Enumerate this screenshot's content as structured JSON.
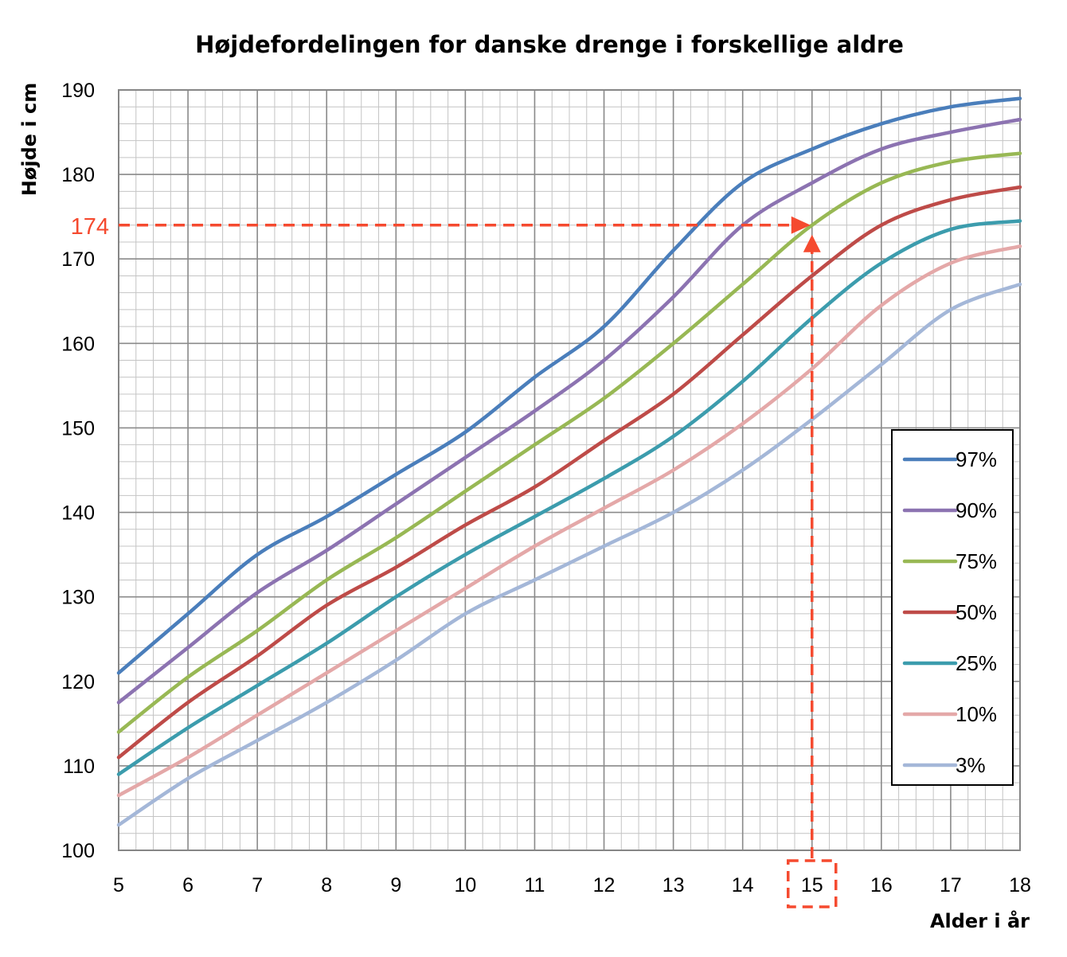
{
  "chart_data": {
    "type": "line",
    "title": "Højdefordelingen for danske drenge i forskellige aldre",
    "xlabel": "Alder i år",
    "ylabel": "Højde i cm",
    "xlim": [
      5,
      18
    ],
    "ylim": [
      100,
      190
    ],
    "x_ticks": [
      5,
      6,
      7,
      8,
      9,
      10,
      11,
      12,
      13,
      14,
      15,
      16,
      17,
      18
    ],
    "y_ticks": [
      100,
      110,
      120,
      130,
      140,
      150,
      160,
      170,
      180,
      190
    ],
    "grid": true,
    "x_minor_step": 0.25,
    "y_minor_step": 2,
    "legend_position": "bottom-right",
    "x": [
      5,
      6,
      7,
      8,
      9,
      10,
      11,
      12,
      13,
      14,
      15,
      16,
      17,
      18
    ],
    "series": [
      {
        "name": "97%",
        "color": "#4a7ebb",
        "values": [
          121,
          128,
          135,
          139.5,
          144.5,
          149.5,
          156,
          162,
          171,
          179,
          183,
          186,
          188,
          189
        ]
      },
      {
        "name": "90%",
        "color": "#8c73b1",
        "values": [
          117.5,
          124,
          130.5,
          135.5,
          141,
          146.5,
          152,
          158,
          165.5,
          174,
          179,
          183,
          185,
          186.5
        ]
      },
      {
        "name": "75%",
        "color": "#98b854",
        "values": [
          114,
          120.5,
          126,
          132,
          137,
          142.5,
          148,
          153.5,
          160,
          167,
          174,
          179,
          181.5,
          182.5
        ]
      },
      {
        "name": "50%",
        "color": "#be4b48",
        "values": [
          111,
          117.5,
          123,
          129,
          133.5,
          138.5,
          143,
          148.5,
          154,
          161,
          168,
          174,
          177,
          178.5
        ]
      },
      {
        "name": "25%",
        "color": "#3c9cad",
        "values": [
          109,
          114.5,
          119.5,
          124.5,
          130,
          135,
          139.5,
          144,
          149,
          155.5,
          163,
          169.5,
          173.5,
          174.5
        ]
      },
      {
        "name": "10%",
        "color": "#e4a8a8",
        "values": [
          106.5,
          111,
          116,
          121,
          126,
          131,
          136,
          140.5,
          145,
          150.5,
          157,
          164.5,
          169.5,
          171.5
        ]
      },
      {
        "name": "3%",
        "color": "#a4b7d8",
        "values": [
          103,
          108.5,
          113,
          117.5,
          122.5,
          128,
          132,
          136,
          140,
          145,
          151,
          157.5,
          164,
          167
        ]
      }
    ],
    "annotations": [
      {
        "label": "174",
        "x": 15,
        "y": 174,
        "color": "#f54a2f"
      }
    ]
  }
}
